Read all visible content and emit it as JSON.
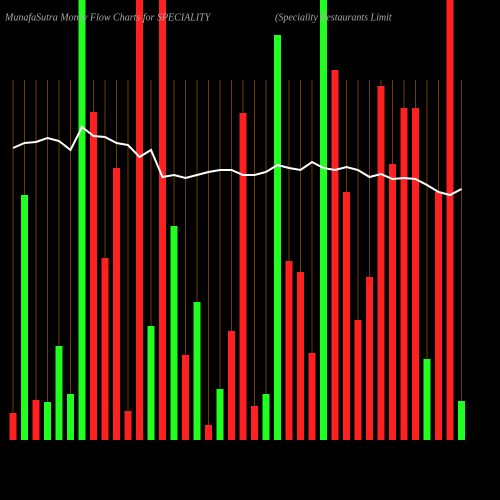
{
  "chart_data": {
    "type": "bar",
    "title": "MunafaSutra  Money Flow  Charts for SPECIALITY",
    "subtitle": "(Speciality Restaurants Limit",
    "categories": [
      null,
      null,
      null,
      null,
      null,
      null,
      null,
      null,
      null,
      null,
      null,
      null,
      null,
      null,
      null,
      null,
      null,
      null,
      null,
      null,
      null,
      null,
      null,
      null,
      null,
      null,
      null,
      null,
      null,
      null,
      null,
      null,
      null,
      null,
      null,
      null,
      null,
      null,
      null,
      null
    ],
    "values": [
      27,
      245,
      40,
      38,
      94,
      46,
      460,
      328,
      182,
      272,
      29,
      460,
      114,
      460,
      214,
      85,
      138,
      15,
      51,
      109,
      327,
      34,
      46,
      405,
      179,
      168,
      87,
      460,
      370,
      248,
      120,
      163,
      354,
      276,
      332,
      332,
      81,
      248,
      460,
      39
    ],
    "colors": [
      "#ff2020",
      "#20ff20",
      "#ff2020",
      "#20ff20",
      "#20ff20",
      "#20ff20",
      "#20ff20",
      "#ff2020",
      "#ff2020",
      "#ff2020",
      "#ff2020",
      "#ff2020",
      "#20ff20",
      "#ff2020",
      "#20ff20",
      "#ff2020",
      "#20ff20",
      "#ff2020",
      "#20ff20",
      "#ff2020",
      "#ff2020",
      "#ff2020",
      "#20ff20",
      "#20ff20",
      "#ff2020",
      "#ff2020",
      "#ff2020",
      "#20ff20",
      "#ff2020",
      "#ff2020",
      "#ff2020",
      "#ff2020",
      "#ff2020",
      "#ff2020",
      "#ff2020",
      "#ff2020",
      "#20ff20",
      "#ff2020",
      "#ff2020",
      "#20ff20"
    ],
    "line_values": [
      292,
      297,
      298,
      302,
      299,
      290,
      313,
      304,
      303,
      297,
      295,
      283,
      290,
      263,
      265,
      262,
      265,
      268,
      270,
      270,
      265,
      265,
      268,
      275,
      272,
      270,
      278,
      272,
      270,
      273,
      270,
      263,
      266,
      261,
      262,
      261,
      255,
      248,
      245,
      251
    ],
    "line_color": "#ffffff",
    "grid_color": "#b8660b",
    "ylim": [
      0,
      440
    ]
  }
}
